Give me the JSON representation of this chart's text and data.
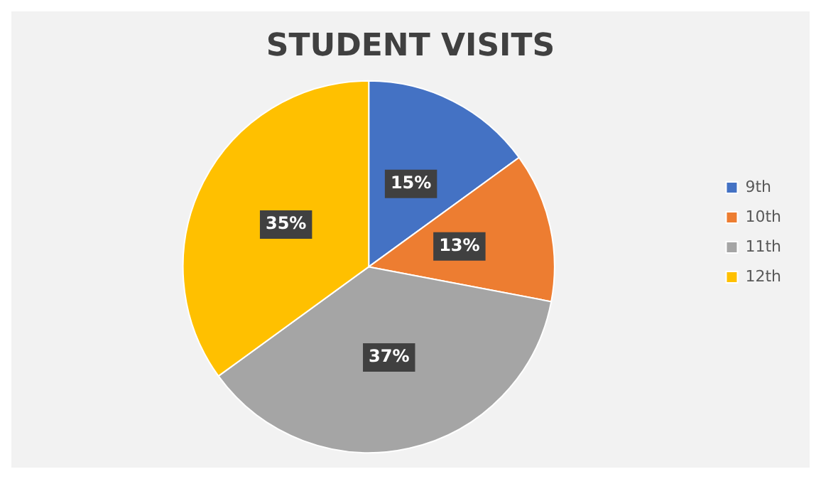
{
  "chart_data": {
    "type": "pie",
    "title": "STUDENT VISITS",
    "categories": [
      "9th",
      "10th",
      "11th",
      "12th"
    ],
    "values": [
      15,
      13,
      37,
      35
    ],
    "colors": [
      "#4472c4",
      "#ed7d31",
      "#a5a5a5",
      "#ffc000"
    ],
    "value_labels": [
      "15%",
      "13%",
      "37%",
      "35%"
    ],
    "legend": "right"
  }
}
